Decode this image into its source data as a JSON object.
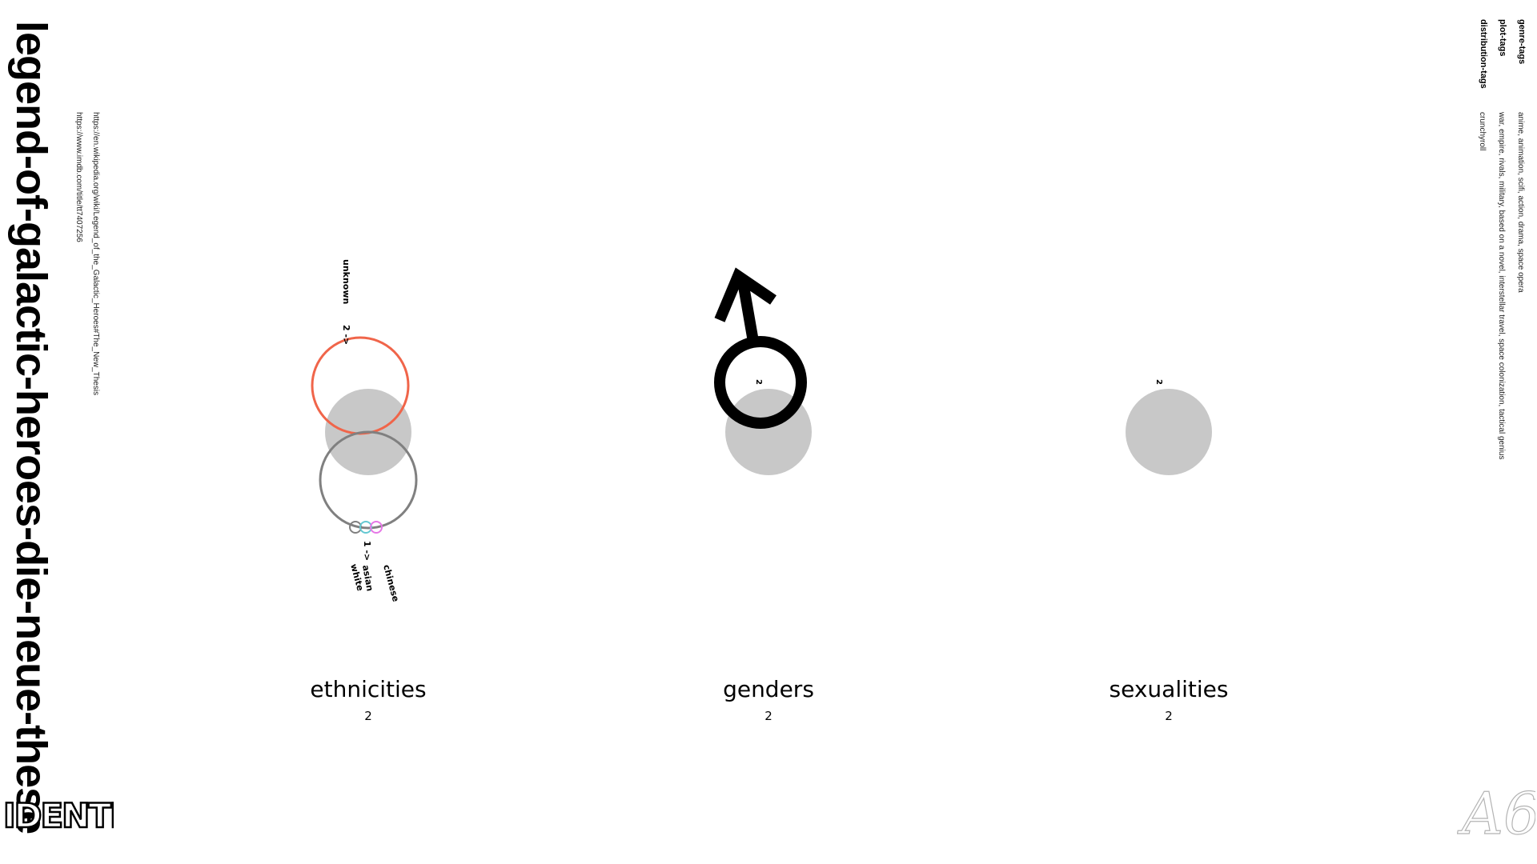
{
  "title": "legend-of-galactic-heroes-die-neue-these",
  "links": {
    "wikipedia": "https://en.wikipedia.org/wiki/Legend_of_the_Galactic_Heroes#The_New_Thesis",
    "imdb": "https://www.imdb.com/title/tt7407256"
  },
  "tags": {
    "genre_label": "genre-tags",
    "genre_value": "anime, animation, scifi, action, drama, space opera",
    "plot_label": "plot-tags",
    "plot_value": "war, empire, rivals, military, based on a novel, interstellar travel, space colonization, tactical genius",
    "distribution_label": "distribution-tags",
    "distribution_value": "crunchyroll"
  },
  "brand": {
    "logo_text": "IDENTI",
    "watermark_text": "A6"
  },
  "colors": {
    "base_disc": "#c8c8c8",
    "unknown_ring": "#f0654a",
    "total_ring": "#808080",
    "white_ring": "#808080",
    "asian_ring": "#64c8d2",
    "chinese_ring": "#e678e6",
    "male_symbol": "#000000"
  },
  "chart_data": [
    {
      "type": "bubble",
      "category": "ethnicities",
      "count_label": "2",
      "groups": [
        {
          "label": "2 ->",
          "items": [
            "unknown"
          ],
          "count": 2
        },
        {
          "label": "1 ->",
          "items": [
            "white",
            "asian",
            "chinese"
          ],
          "count": 1
        }
      ]
    },
    {
      "type": "bubble",
      "category": "genders",
      "count_label": "2",
      "value_label": "2",
      "symbol": "male-symbol"
    },
    {
      "type": "bubble",
      "category": "sexualities",
      "count_label": "2",
      "value_label": "2"
    }
  ]
}
